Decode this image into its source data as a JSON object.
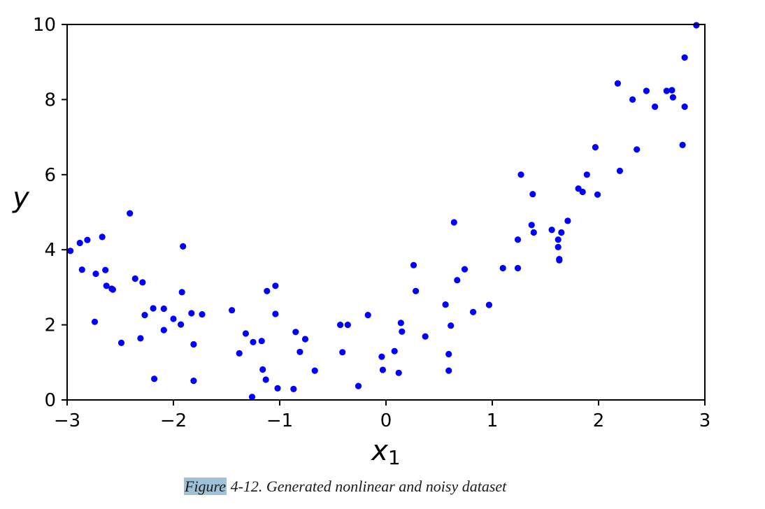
{
  "chart_data": {
    "type": "scatter",
    "xlabel": "x",
    "xlabel_subscript": "1",
    "ylabel": "y",
    "xlim": [
      -3,
      3
    ],
    "ylim": [
      0,
      10
    ],
    "xticks": [
      -3,
      -2,
      -1,
      0,
      1,
      2,
      3
    ],
    "xtick_labels": [
      "−3",
      "−2",
      "−1",
      "0",
      "1",
      "2",
      "3"
    ],
    "yticks": [
      0,
      2,
      4,
      6,
      8,
      10
    ],
    "ytick_labels": [
      "0",
      "2",
      "4",
      "6",
      "8",
      "10"
    ],
    "grid": false,
    "color": "#0000ff",
    "points": [
      [
        -2.97,
        3.97
      ],
      [
        -2.88,
        4.18
      ],
      [
        -2.86,
        3.47
      ],
      [
        -2.81,
        4.26
      ],
      [
        -2.74,
        2.08
      ],
      [
        -2.73,
        3.36
      ],
      [
        -2.67,
        4.34
      ],
      [
        -2.64,
        3.46
      ],
      [
        -2.63,
        3.04
      ],
      [
        -2.58,
        2.96
      ],
      [
        -2.57,
        2.94
      ],
      [
        -2.49,
        1.52
      ],
      [
        -2.41,
        4.97
      ],
      [
        -2.36,
        3.23
      ],
      [
        -2.31,
        1.64
      ],
      [
        -2.29,
        3.13
      ],
      [
        -2.27,
        2.26
      ],
      [
        -2.19,
        2.44
      ],
      [
        -2.18,
        0.56
      ],
      [
        -2.09,
        1.86
      ],
      [
        -2.09,
        2.43
      ],
      [
        -2.0,
        2.16
      ],
      [
        -1.93,
        2.01
      ],
      [
        -1.92,
        2.87
      ],
      [
        -1.91,
        4.09
      ],
      [
        -1.83,
        2.31
      ],
      [
        -1.81,
        1.48
      ],
      [
        -1.81,
        0.51
      ],
      [
        -1.73,
        2.28
      ],
      [
        -1.45,
        2.39
      ],
      [
        -1.38,
        1.24
      ],
      [
        -1.32,
        1.77
      ],
      [
        -1.26,
        0.08
      ],
      [
        -1.25,
        1.54
      ],
      [
        -1.17,
        1.57
      ],
      [
        -1.16,
        0.81
      ],
      [
        -1.13,
        0.54
      ],
      [
        -1.12,
        2.9
      ],
      [
        -1.04,
        3.04
      ],
      [
        -1.04,
        2.29
      ],
      [
        -1.02,
        0.31
      ],
      [
        -0.87,
        0.29
      ],
      [
        -0.85,
        1.81
      ],
      [
        -0.81,
        1.28
      ],
      [
        -0.76,
        1.62
      ],
      [
        -0.67,
        0.78
      ],
      [
        -0.43,
        2.0
      ],
      [
        -0.41,
        1.27
      ],
      [
        -0.36,
        2.0
      ],
      [
        -0.26,
        0.37
      ],
      [
        -0.17,
        2.26
      ],
      [
        -0.04,
        1.15
      ],
      [
        -0.03,
        0.8
      ],
      [
        0.08,
        1.3
      ],
      [
        0.12,
        0.72
      ],
      [
        0.14,
        2.05
      ],
      [
        0.15,
        1.82
      ],
      [
        0.26,
        3.59
      ],
      [
        0.28,
        2.9
      ],
      [
        0.37,
        1.69
      ],
      [
        0.56,
        2.54
      ],
      [
        0.59,
        1.22
      ],
      [
        0.59,
        0.78
      ],
      [
        0.61,
        1.98
      ],
      [
        0.64,
        4.73
      ],
      [
        0.67,
        3.19
      ],
      [
        0.74,
        3.48
      ],
      [
        0.82,
        2.34
      ],
      [
        0.97,
        2.53
      ],
      [
        1.1,
        3.51
      ],
      [
        1.24,
        4.27
      ],
      [
        1.24,
        3.51
      ],
      [
        1.27,
        6.0
      ],
      [
        1.37,
        4.66
      ],
      [
        1.38,
        5.48
      ],
      [
        1.39,
        4.46
      ],
      [
        1.56,
        4.53
      ],
      [
        1.62,
        4.27
      ],
      [
        1.62,
        4.07
      ],
      [
        1.63,
        3.75
      ],
      [
        1.63,
        3.72
      ],
      [
        1.65,
        4.46
      ],
      [
        1.71,
        4.77
      ],
      [
        1.81,
        5.63
      ],
      [
        1.85,
        5.54
      ],
      [
        1.89,
        6.0
      ],
      [
        1.97,
        6.73
      ],
      [
        1.99,
        5.47
      ],
      [
        2.18,
        8.43
      ],
      [
        2.2,
        6.1
      ],
      [
        2.32,
        8.0
      ],
      [
        2.36,
        6.67
      ],
      [
        2.45,
        8.23
      ],
      [
        2.53,
        7.81
      ],
      [
        2.64,
        8.23
      ],
      [
        2.69,
        8.25
      ],
      [
        2.7,
        8.06
      ],
      [
        2.79,
        6.79
      ],
      [
        2.81,
        9.12
      ],
      [
        2.81,
        7.81
      ],
      [
        2.92,
        9.98
      ]
    ]
  },
  "caption": {
    "prefix": "Figure",
    "text": " 4-12. Generated nonlinear and noisy dataset"
  }
}
